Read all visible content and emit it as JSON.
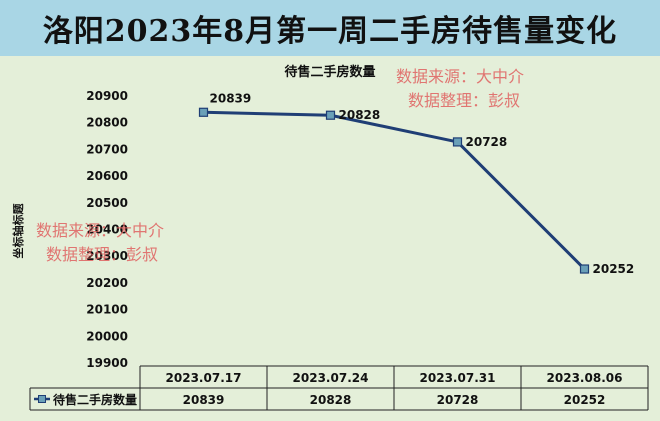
{
  "header": {
    "title": "洛阳2023年8月第一周二手房待售量变化"
  },
  "watermarks": {
    "line1": "数据来源：大中介",
    "line2": "数据整理：彭叔"
  },
  "chart_data": {
    "type": "line",
    "title": "待售二手房数量",
    "ylabel": "坐标轴标题",
    "xlabel": "",
    "categories": [
      "2023.07.17",
      "2023.07.24",
      "2023.07.31",
      "2023.08.06"
    ],
    "series": [
      {
        "name": "待售二手房数量",
        "values": [
          20839,
          20828,
          20728,
          20252
        ]
      }
    ],
    "ylim": [
      19900,
      20900
    ],
    "yticks": [
      19900,
      20000,
      20100,
      20200,
      20300,
      20400,
      20500,
      20600,
      20700,
      20800,
      20900
    ],
    "grid": false,
    "legend": "data-table-left",
    "data_table": true,
    "colors": {
      "line": "#1f3e75",
      "marker_fill": "#6aa0b8",
      "panel": "#e4efd9",
      "header": "#a9d6e5"
    }
  }
}
